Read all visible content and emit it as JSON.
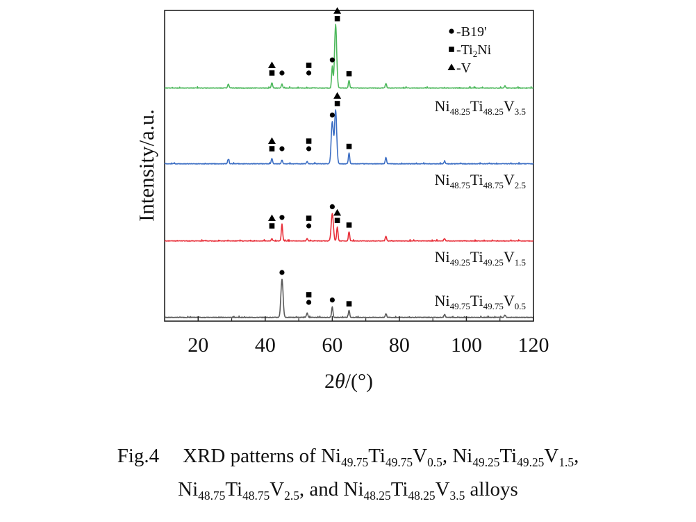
{
  "chart_data": {
    "type": "line",
    "xlabel": "2θ/(°)",
    "ylabel": "Intensity/a.u.",
    "xlim": [
      10,
      120
    ],
    "xticks": [
      20,
      40,
      60,
      80,
      100,
      120
    ],
    "grid": false,
    "legend_position": "top-right",
    "legend": [
      {
        "marker": "circle",
        "label": "-B19'"
      },
      {
        "marker": "square",
        "label": "-Ti2Ni"
      },
      {
        "marker": "triangle",
        "label": "-V"
      }
    ],
    "series": [
      {
        "name": "Ni49.75Ti49.75V0.5",
        "label_parts": [
          [
            "Ni",
            ""
          ],
          [
            "49.75",
            "sub"
          ],
          [
            "Ti",
            ""
          ],
          [
            "49.75",
            "sub"
          ],
          [
            "V",
            ""
          ],
          [
            "0.5",
            "sub"
          ]
        ],
        "color": "#5a5a5a",
        "peaks": [
          [
            45.0,
            50
          ],
          [
            52.5,
            6
          ],
          [
            60.0,
            14
          ],
          [
            65.0,
            9
          ],
          [
            76.0,
            5
          ],
          [
            93.5,
            4
          ],
          [
            111.5,
            3
          ]
        ],
        "markers": [
          {
            "x": 45.0,
            "stack": [
              "circle"
            ]
          },
          {
            "x": 53.0,
            "stack": [
              "circle",
              "square"
            ]
          },
          {
            "x": 60.0,
            "stack": [
              "circle"
            ]
          },
          {
            "x": 65.0,
            "stack": [
              "square"
            ]
          }
        ]
      },
      {
        "name": "Ni49.25Ti49.25V1.5",
        "label_parts": [
          [
            "Ni",
            ""
          ],
          [
            "49.25",
            "sub"
          ],
          [
            "Ti",
            ""
          ],
          [
            "49.25",
            "sub"
          ],
          [
            "V",
            ""
          ],
          [
            "1.5",
            "sub"
          ]
        ],
        "color": "#e8303a",
        "peaks": [
          [
            42.0,
            3
          ],
          [
            45.0,
            22
          ],
          [
            52.5,
            3
          ],
          [
            60.0,
            36
          ],
          [
            61.5,
            18
          ],
          [
            65.0,
            12
          ],
          [
            76.0,
            6
          ],
          [
            93.5,
            3
          ]
        ],
        "markers": [
          {
            "x": 42.0,
            "stack": [
              "square",
              "triangle"
            ]
          },
          {
            "x": 45.0,
            "stack": [
              "circle"
            ]
          },
          {
            "x": 53.0,
            "stack": [
              "circle",
              "square"
            ]
          },
          {
            "x": 60.0,
            "stack": [
              "circle"
            ]
          },
          {
            "x": 61.5,
            "stack": [
              "square",
              "triangle"
            ]
          },
          {
            "x": 65.0,
            "stack": [
              "square"
            ]
          }
        ]
      },
      {
        "name": "Ni48.75Ti48.75V2.5",
        "label_parts": [
          [
            "Ni",
            ""
          ],
          [
            "48.75",
            "sub"
          ],
          [
            "Ti",
            ""
          ],
          [
            "48.75",
            "sub"
          ],
          [
            "V",
            ""
          ],
          [
            "2.5",
            "sub"
          ]
        ],
        "color": "#3d6fc4",
        "peaks": [
          [
            29.0,
            6
          ],
          [
            42.0,
            7
          ],
          [
            45.0,
            5
          ],
          [
            52.5,
            3
          ],
          [
            60.0,
            55
          ],
          [
            61.0,
            70
          ],
          [
            65.0,
            14
          ],
          [
            76.0,
            8
          ],
          [
            93.5,
            3
          ]
        ],
        "markers": [
          {
            "x": 42.0,
            "stack": [
              "square",
              "triangle"
            ]
          },
          {
            "x": 45.0,
            "stack": [
              "circle"
            ]
          },
          {
            "x": 53.0,
            "stack": [
              "circle",
              "square"
            ]
          },
          {
            "x": 60.0,
            "stack": [
              "circle"
            ]
          },
          {
            "x": 61.5,
            "stack": [
              "square",
              "triangle"
            ]
          },
          {
            "x": 65.0,
            "stack": [
              "square"
            ]
          }
        ]
      },
      {
        "name": "Ni48.25Ti48.25V3.5",
        "label_parts": [
          [
            "Ni",
            ""
          ],
          [
            "48.25",
            "sub"
          ],
          [
            "Ti",
            ""
          ],
          [
            "48.25",
            "sub"
          ],
          [
            "V",
            ""
          ],
          [
            "3.5",
            "sub"
          ]
        ],
        "color": "#4db85c",
        "peaks": [
          [
            29.0,
            5
          ],
          [
            42.0,
            7
          ],
          [
            45.0,
            5
          ],
          [
            60.0,
            28
          ],
          [
            61.0,
            82
          ],
          [
            65.0,
            10
          ],
          [
            76.0,
            6
          ],
          [
            111.5,
            3
          ]
        ],
        "markers": [
          {
            "x": 42.0,
            "stack": [
              "square",
              "triangle"
            ]
          },
          {
            "x": 45.0,
            "stack": [
              "circle"
            ]
          },
          {
            "x": 53.0,
            "stack": [
              "circle",
              "square"
            ]
          },
          {
            "x": 60.0,
            "stack": [
              "circle"
            ]
          },
          {
            "x": 61.5,
            "stack": [
              "square",
              "triangle"
            ]
          },
          {
            "x": 65.0,
            "stack": [
              "square"
            ]
          }
        ]
      }
    ]
  },
  "caption": {
    "fig_label": "Fig.4",
    "line1_lead": "XRD patterns of ",
    "alloy1": [
      [
        "Ni",
        ""
      ],
      [
        "49.75",
        "sub"
      ],
      [
        "Ti",
        ""
      ],
      [
        "49.75",
        "sub"
      ],
      [
        "V",
        ""
      ],
      [
        "0.5",
        "sub"
      ]
    ],
    "sep1": ", ",
    "alloy2": [
      [
        "Ni",
        ""
      ],
      [
        "49.25",
        "sub"
      ],
      [
        "Ti",
        ""
      ],
      [
        "49.25",
        "sub"
      ],
      [
        "V",
        ""
      ],
      [
        "1.5",
        "sub"
      ]
    ],
    "sep2": ",",
    "alloy3": [
      [
        "Ni",
        ""
      ],
      [
        "48.75",
        "sub"
      ],
      [
        "Ti",
        ""
      ],
      [
        "48.75",
        "sub"
      ],
      [
        "V",
        ""
      ],
      [
        "2.5",
        "sub"
      ]
    ],
    "mid": ", and ",
    "alloy4": [
      [
        "Ni",
        ""
      ],
      [
        "48.25",
        "sub"
      ],
      [
        "Ti",
        ""
      ],
      [
        "48.25",
        "sub"
      ],
      [
        "V",
        ""
      ],
      [
        "3.5",
        "sub"
      ]
    ],
    "tail": " alloys"
  }
}
